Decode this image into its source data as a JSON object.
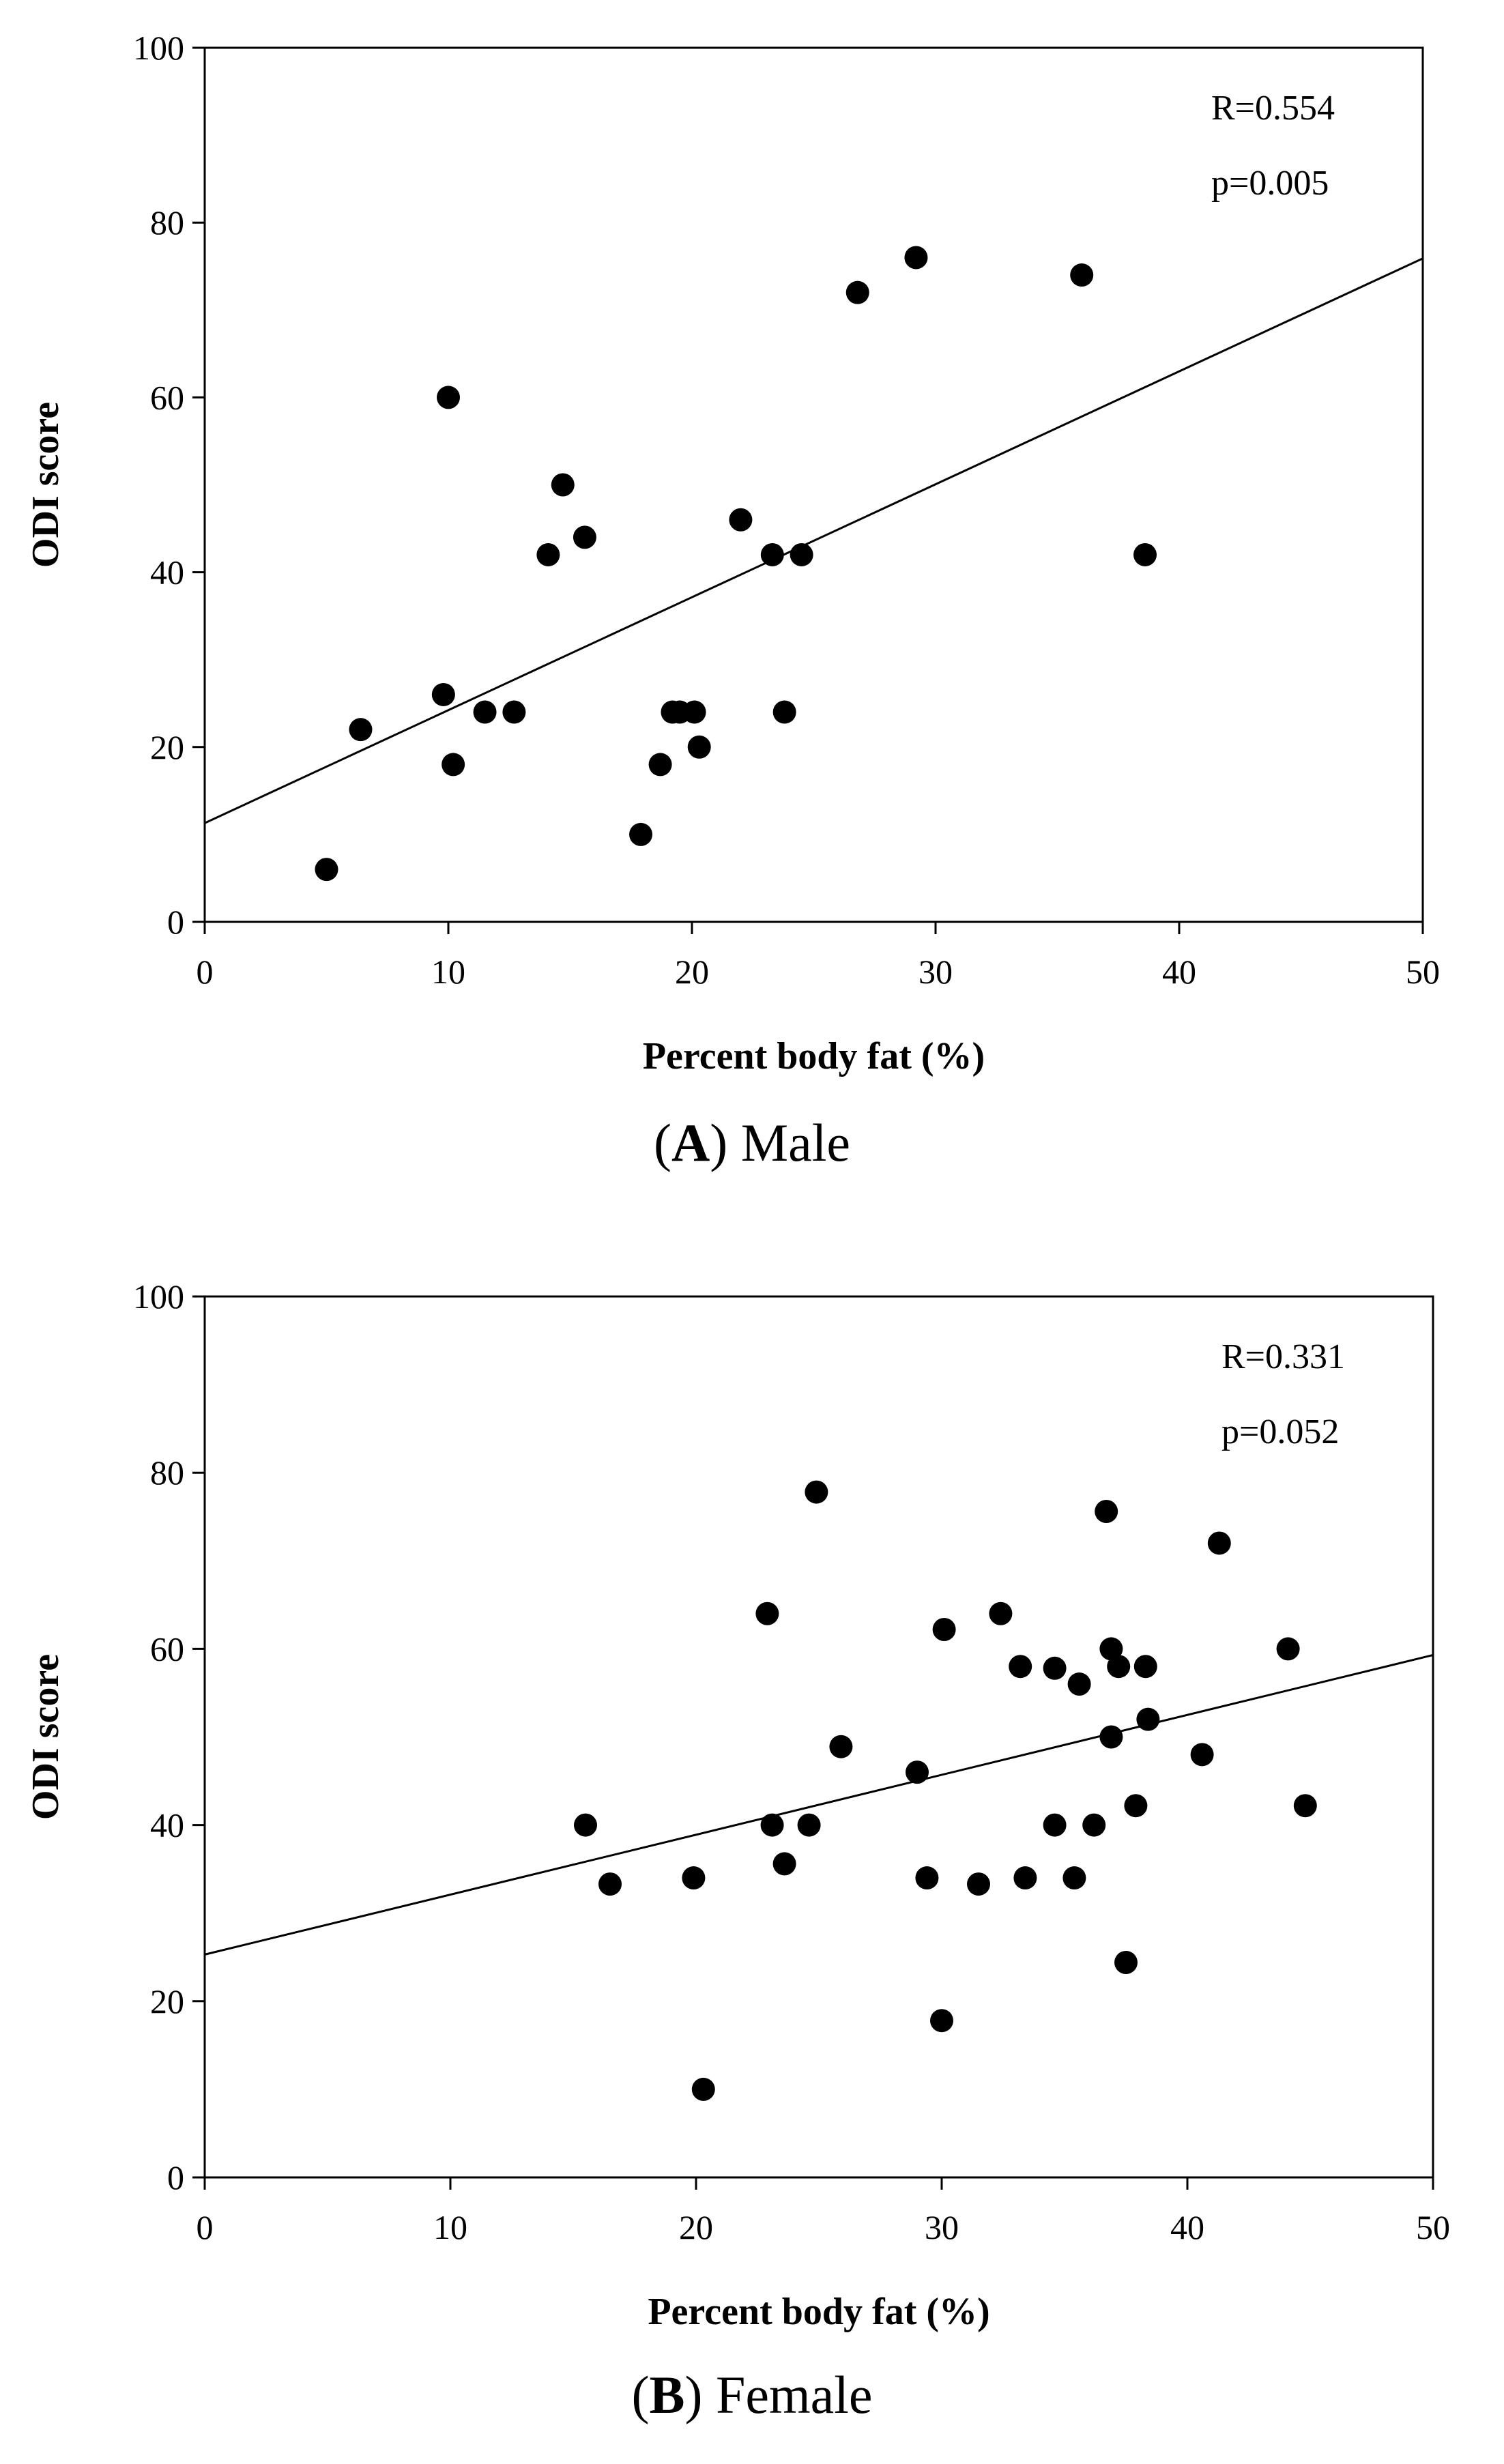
{
  "chart_data": [
    {
      "type": "scatter",
      "panel_letter": "A",
      "panel_title": "Male",
      "xlabel": "Percent body fat (%)",
      "ylabel": "ODI score",
      "xlim": [
        0,
        50
      ],
      "ylim": [
        0,
        100
      ],
      "xticks": [
        0,
        10,
        20,
        30,
        40,
        50
      ],
      "yticks": [
        0,
        20,
        40,
        60,
        80,
        100
      ],
      "annotations": {
        "r": "R=0.554",
        "p": "p=0.005"
      },
      "fit_line": {
        "x": [
          0,
          50
        ],
        "y": [
          11.3,
          75.9
        ]
      },
      "points": [
        {
          "x": 5.0,
          "y": 6
        },
        {
          "x": 6.4,
          "y": 22
        },
        {
          "x": 9.8,
          "y": 26
        },
        {
          "x": 10.0,
          "y": 60
        },
        {
          "x": 10.2,
          "y": 18
        },
        {
          "x": 11.5,
          "y": 24
        },
        {
          "x": 12.7,
          "y": 24
        },
        {
          "x": 14.1,
          "y": 42
        },
        {
          "x": 14.7,
          "y": 50
        },
        {
          "x": 15.6,
          "y": 44
        },
        {
          "x": 17.9,
          "y": 10
        },
        {
          "x": 18.7,
          "y": 18
        },
        {
          "x": 19.2,
          "y": 24
        },
        {
          "x": 19.5,
          "y": 24
        },
        {
          "x": 20.1,
          "y": 24
        },
        {
          "x": 20.3,
          "y": 20
        },
        {
          "x": 22.0,
          "y": 46
        },
        {
          "x": 23.3,
          "y": 42
        },
        {
          "x": 23.8,
          "y": 24
        },
        {
          "x": 24.5,
          "y": 42
        },
        {
          "x": 26.8,
          "y": 72
        },
        {
          "x": 29.2,
          "y": 76
        },
        {
          "x": 36.0,
          "y": 74
        },
        {
          "x": 38.6,
          "y": 42
        }
      ]
    },
    {
      "type": "scatter",
      "panel_letter": "B",
      "panel_title": "Female",
      "xlabel": "Percent body fat (%)",
      "ylabel": "ODI score",
      "xlim": [
        0,
        50
      ],
      "ylim": [
        0,
        100
      ],
      "xticks": [
        0,
        10,
        20,
        30,
        40,
        50
      ],
      "yticks": [
        0,
        20,
        40,
        60,
        80,
        100
      ],
      "annotations": {
        "r": "R=0.331",
        "p": "p=0.052"
      },
      "fit_line": {
        "x": [
          0,
          50
        ],
        "y": [
          25.3,
          59.3
        ]
      },
      "points": [
        {
          "x": 15.5,
          "y": 40
        },
        {
          "x": 16.5,
          "y": 33.3
        },
        {
          "x": 19.9,
          "y": 34
        },
        {
          "x": 20.3,
          "y": 10
        },
        {
          "x": 22.9,
          "y": 64
        },
        {
          "x": 23.1,
          "y": 40
        },
        {
          "x": 23.6,
          "y": 35.6
        },
        {
          "x": 24.6,
          "y": 40
        },
        {
          "x": 24.9,
          "y": 77.8
        },
        {
          "x": 25.9,
          "y": 48.9
        },
        {
          "x": 29.0,
          "y": 46
        },
        {
          "x": 29.4,
          "y": 34
        },
        {
          "x": 30.0,
          "y": 17.8
        },
        {
          "x": 30.1,
          "y": 62.2
        },
        {
          "x": 31.5,
          "y": 33.3
        },
        {
          "x": 32.4,
          "y": 64
        },
        {
          "x": 33.2,
          "y": 58
        },
        {
          "x": 33.4,
          "y": 34
        },
        {
          "x": 34.6,
          "y": 57.8
        },
        {
          "x": 34.6,
          "y": 40
        },
        {
          "x": 35.4,
          "y": 34
        },
        {
          "x": 35.6,
          "y": 56
        },
        {
          "x": 36.2,
          "y": 40
        },
        {
          "x": 36.7,
          "y": 75.6
        },
        {
          "x": 36.9,
          "y": 60
        },
        {
          "x": 36.9,
          "y": 50
        },
        {
          "x": 37.2,
          "y": 58
        },
        {
          "x": 37.5,
          "y": 24.4
        },
        {
          "x": 37.9,
          "y": 42.2
        },
        {
          "x": 38.3,
          "y": 58
        },
        {
          "x": 38.4,
          "y": 52
        },
        {
          "x": 40.6,
          "y": 48
        },
        {
          "x": 41.3,
          "y": 72
        },
        {
          "x": 44.1,
          "y": 60
        },
        {
          "x": 44.8,
          "y": 42.2
        }
      ]
    }
  ]
}
